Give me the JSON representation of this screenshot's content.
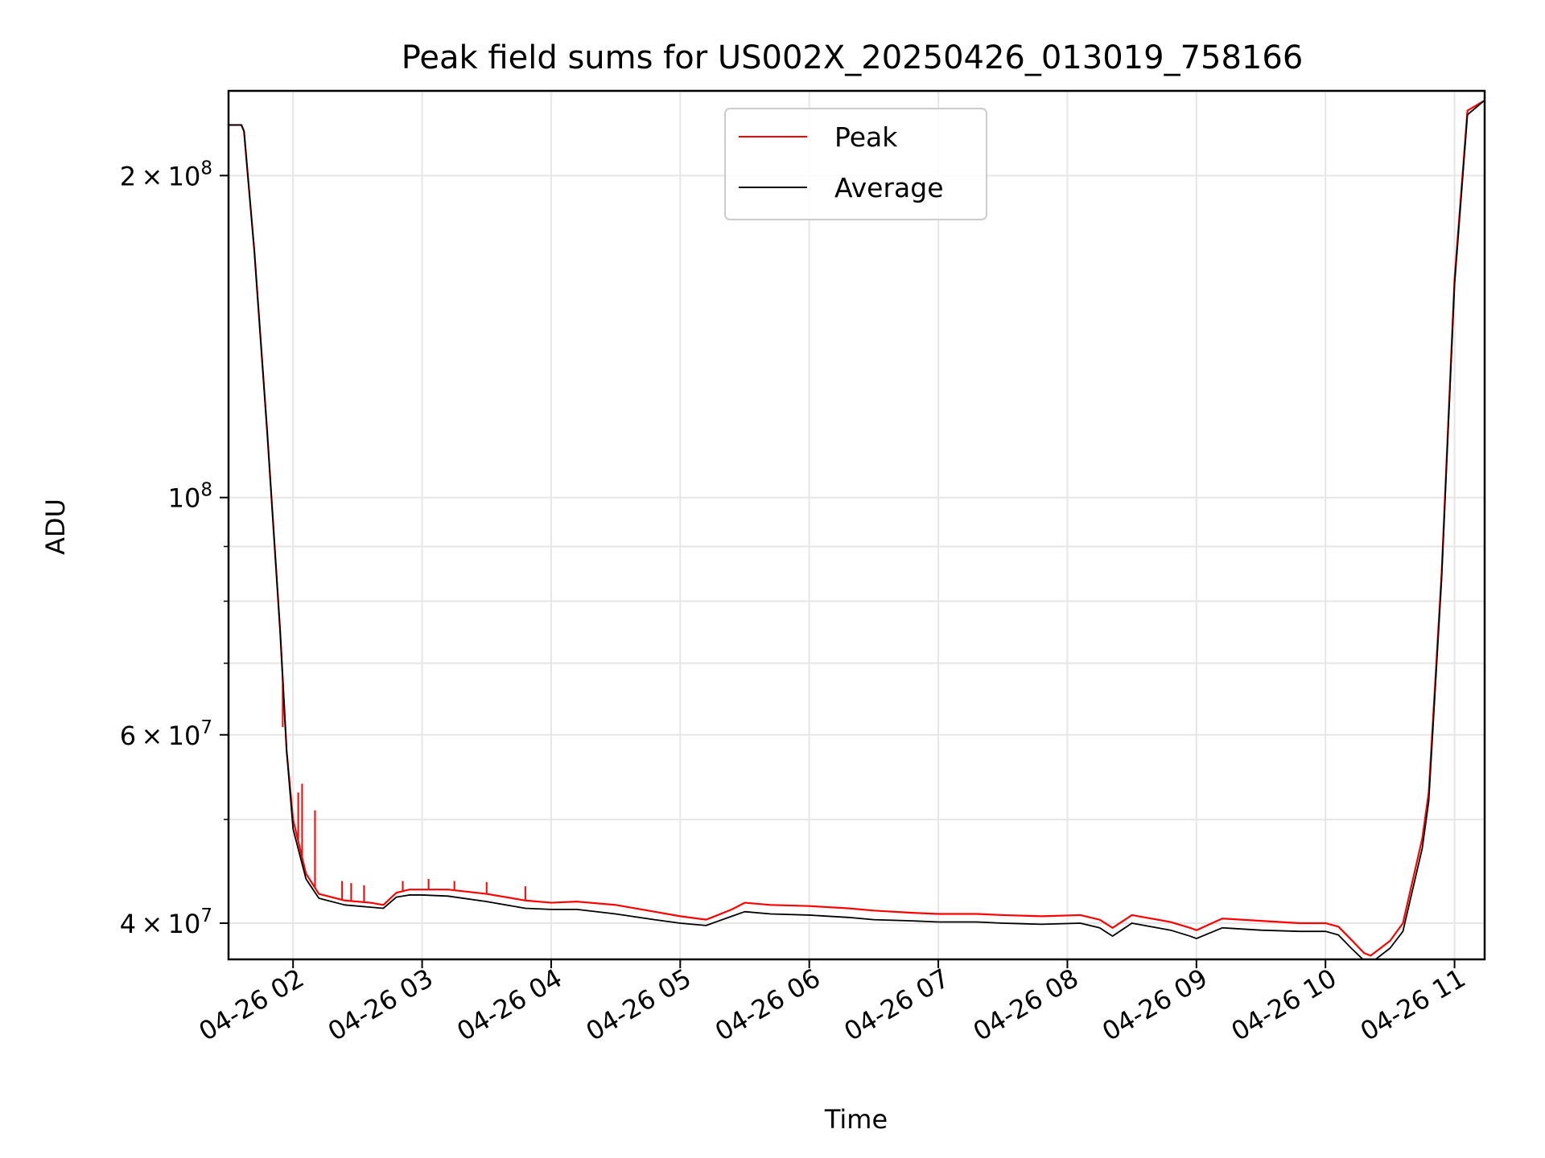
{
  "chart_data": {
    "type": "line",
    "title": "Peak field sums for US002X_20250426_013019_758166",
    "xlabel": "Time",
    "ylabel": "ADU",
    "x_axis": {
      "type": "time",
      "range": [
        "2025-04-26 01:30",
        "2025-04-26 11:14"
      ],
      "tick_labels": [
        "04-26 02",
        "04-26 03",
        "04-26 04",
        "04-26 05",
        "04-26 06",
        "04-26 07",
        "04-26 08",
        "04-26 09",
        "04-26 10",
        "04-26 11"
      ],
      "tick_hours": [
        2,
        3,
        4,
        5,
        6,
        7,
        8,
        9,
        10,
        11
      ]
    },
    "y_axis": {
      "scale": "log",
      "range": [
        37000000,
        240000000
      ],
      "major_tick_labels": [
        {
          "value": 40000000,
          "mantissa": "4",
          "exponent": "7"
        },
        {
          "value": 60000000,
          "mantissa": "6",
          "exponent": "7"
        },
        {
          "value": 100000000,
          "mantissa": "",
          "exponent": "8"
        },
        {
          "value": 200000000,
          "mantissa": "2",
          "exponent": "8"
        }
      ],
      "minor_tick_values": [
        50000000,
        70000000,
        80000000,
        90000000
      ]
    },
    "grid": true,
    "legend_position": "upper center",
    "series": [
      {
        "name": "Peak",
        "color": "#ff0000",
        "x_hours": [
          1.5,
          1.6,
          1.62,
          1.7,
          1.8,
          1.9,
          1.95,
          2.0,
          2.1,
          2.2,
          2.4,
          2.6,
          2.7,
          2.8,
          2.9,
          3.0,
          3.2,
          3.5,
          3.8,
          4.0,
          4.2,
          4.5,
          4.8,
          5.0,
          5.2,
          5.4,
          5.5,
          5.7,
          6.0,
          6.3,
          6.5,
          6.8,
          7.0,
          7.3,
          7.5,
          7.8,
          8.1,
          8.25,
          8.35,
          8.5,
          8.8,
          8.95,
          9.0,
          9.2,
          9.5,
          9.8,
          10.0,
          10.1,
          10.2,
          10.3,
          10.35,
          10.5,
          10.6,
          10.75,
          10.8,
          10.9,
          11.0,
          11.1,
          11.23
        ],
        "values": [
          223000000,
          223000000,
          220000000,
          170000000,
          115000000,
          75000000,
          58000000,
          50000000,
          44500000,
          42600000,
          42000000,
          41800000,
          41600000,
          42700000,
          43000000,
          43000000,
          43000000,
          42600000,
          42000000,
          41800000,
          41900000,
          41600000,
          41000000,
          40600000,
          40300000,
          41200000,
          41800000,
          41600000,
          41500000,
          41300000,
          41100000,
          40900000,
          40800000,
          40800000,
          40700000,
          40600000,
          40700000,
          40300000,
          39600000,
          40700000,
          40100000,
          39600000,
          39400000,
          40400000,
          40200000,
          40000000,
          40000000,
          39700000,
          38600000,
          37500000,
          37300000,
          38500000,
          40000000,
          48000000,
          53000000,
          85000000,
          160000000,
          230000000,
          235000000
        ],
        "spikes": [
          {
            "x_hour": 1.92,
            "value": 61000000
          },
          {
            "x_hour": 2.04,
            "value": 53000000
          },
          {
            "x_hour": 2.07,
            "value": 54000000
          },
          {
            "x_hour": 2.17,
            "value": 51000000
          },
          {
            "x_hour": 2.38,
            "value": 43800000
          },
          {
            "x_hour": 2.45,
            "value": 43600000
          },
          {
            "x_hour": 2.55,
            "value": 43400000
          },
          {
            "x_hour": 2.85,
            "value": 43800000
          },
          {
            "x_hour": 3.05,
            "value": 44000000
          },
          {
            "x_hour": 3.25,
            "value": 43800000
          },
          {
            "x_hour": 3.5,
            "value": 43700000
          },
          {
            "x_hour": 3.8,
            "value": 43300000
          }
        ]
      },
      {
        "name": "Average",
        "color": "#000000",
        "x_hours": [
          1.5,
          1.6,
          1.62,
          1.7,
          1.8,
          1.9,
          1.95,
          2.0,
          2.1,
          2.2,
          2.4,
          2.6,
          2.7,
          2.8,
          2.9,
          3.0,
          3.2,
          3.5,
          3.8,
          4.0,
          4.2,
          4.5,
          4.8,
          5.0,
          5.2,
          5.4,
          5.5,
          5.7,
          6.0,
          6.3,
          6.5,
          6.8,
          7.0,
          7.3,
          7.5,
          7.8,
          8.1,
          8.25,
          8.35,
          8.5,
          8.8,
          8.95,
          9.0,
          9.2,
          9.5,
          9.8,
          10.0,
          10.1,
          10.2,
          10.3,
          10.35,
          10.5,
          10.6,
          10.75,
          10.8,
          10.9,
          11.0,
          11.1,
          11.23
        ],
        "values": [
          223000000,
          223000000,
          220000000,
          170000000,
          115000000,
          75000000,
          58000000,
          49000000,
          44000000,
          42200000,
          41600000,
          41400000,
          41300000,
          42300000,
          42500000,
          42500000,
          42400000,
          41900000,
          41300000,
          41200000,
          41200000,
          40800000,
          40300000,
          40000000,
          39800000,
          40600000,
          41000000,
          40800000,
          40700000,
          40500000,
          40300000,
          40200000,
          40100000,
          40100000,
          40000000,
          39900000,
          40000000,
          39600000,
          38900000,
          40000000,
          39400000,
          38900000,
          38700000,
          39600000,
          39400000,
          39300000,
          39300000,
          39000000,
          37900000,
          36900000,
          36700000,
          37900000,
          39300000,
          47000000,
          52000000,
          84000000,
          158000000,
          228000000,
          235000000
        ]
      }
    ]
  }
}
